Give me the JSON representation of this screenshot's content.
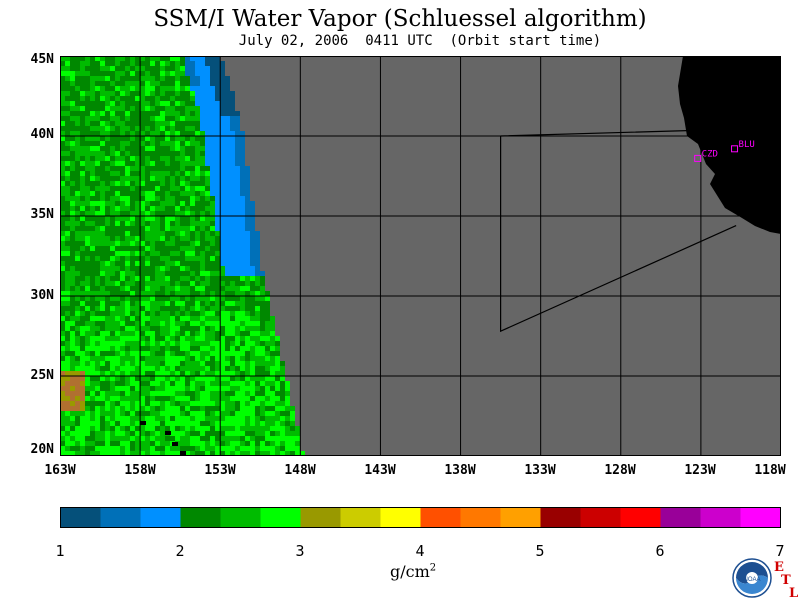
{
  "header": {
    "title": "SSM/I Water Vapor (Schluessel algorithm)",
    "subtitle": "July 02, 2006  0411 UTC  (Orbit start time)"
  },
  "map": {
    "lat_labels": [
      "45N",
      "40N",
      "35N",
      "30N",
      "25N",
      "20N"
    ],
    "lon_labels": [
      "163W",
      "158W",
      "153W",
      "148W",
      "143W",
      "138W",
      "133W",
      "128W",
      "123W",
      "118W"
    ],
    "lat_range": [
      20,
      45
    ],
    "lon_range": [
      -163,
      -118
    ],
    "stations": [
      {
        "name": "CZD",
        "lat": 38.6,
        "lon": -123.2
      },
      {
        "name": "BLU",
        "lat": 39.2,
        "lon": -120.9
      }
    ],
    "no_data_color": "#666666",
    "land_color": "#000000"
  },
  "colorbar": {
    "labels": [
      "1",
      "2",
      "3",
      "4",
      "5",
      "6",
      "7"
    ],
    "units": "g/cm",
    "units_exp": "2",
    "range": [
      1,
      7
    ],
    "colors": [
      "#05507a",
      "#0070b8",
      "#0090ff",
      "#008800",
      "#00bb00",
      "#00ff00",
      "#999900",
      "#cccc00",
      "#ffff00",
      "#ff5000",
      "#ff7800",
      "#ffa000",
      "#990000",
      "#cc0000",
      "#ff0000",
      "#990099",
      "#cc00cc",
      "#ff00ff"
    ]
  },
  "logos": {
    "noaa": "NOAA",
    "etl_letters": [
      "E",
      "T",
      "L"
    ]
  }
}
